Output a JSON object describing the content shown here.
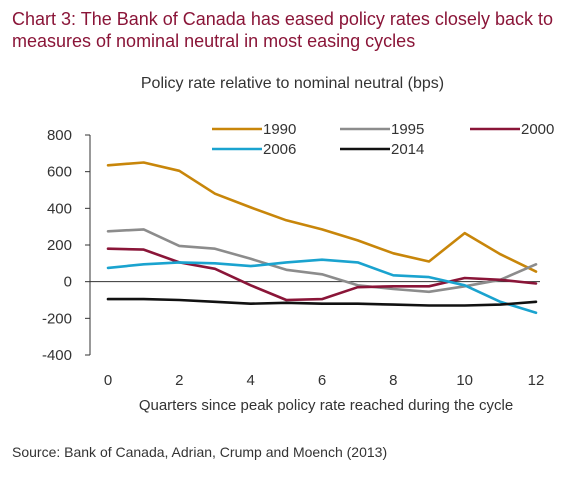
{
  "page": {
    "title": "Chart 3: The Bank of Canada has eased policy rates closely back to measures of nominal neutral in most easing cycles",
    "source": "Source: Bank of Canada, Adrian, Crump and Moench (2013)"
  },
  "chart_data": {
    "type": "line",
    "title": "Policy rate relative to nominal neutral (bps)",
    "xlabel": "Quarters since peak policy rate reached during the cycle",
    "ylabel": "",
    "xlim": [
      0,
      12
    ],
    "ylim": [
      -400,
      800
    ],
    "x_ticks": [
      0,
      2,
      4,
      6,
      8,
      10,
      12
    ],
    "y_ticks": [
      -400,
      -200,
      0,
      200,
      400,
      600,
      800
    ],
    "x": [
      0,
      1,
      2,
      3,
      4,
      5,
      6,
      7,
      8,
      9,
      10,
      11,
      12
    ],
    "grid": false,
    "legend_position": "top",
    "series": [
      {
        "name": "1990",
        "color": "#c8860a",
        "values": [
          635,
          650,
          605,
          480,
          405,
          335,
          285,
          225,
          155,
          110,
          265,
          150,
          55
        ]
      },
      {
        "name": "1995",
        "color": "#8c8c8c",
        "values": [
          275,
          285,
          195,
          180,
          125,
          65,
          40,
          -20,
          -40,
          -55,
          -25,
          10,
          95
        ]
      },
      {
        "name": "2000",
        "color": "#8a1538",
        "values": [
          180,
          175,
          105,
          70,
          -20,
          -100,
          -95,
          -30,
          -25,
          -25,
          20,
          10,
          -10
        ]
      },
      {
        "name": "2006",
        "color": "#1aa3cf",
        "values": [
          75,
          95,
          105,
          100,
          85,
          105,
          120,
          105,
          35,
          25,
          -20,
          -110,
          -170
        ]
      },
      {
        "name": "2014",
        "color": "#111111",
        "values": [
          -95,
          -95,
          -100,
          -110,
          -120,
          -115,
          -120,
          -120,
          -125,
          -130,
          -130,
          -125,
          -110
        ]
      }
    ]
  }
}
